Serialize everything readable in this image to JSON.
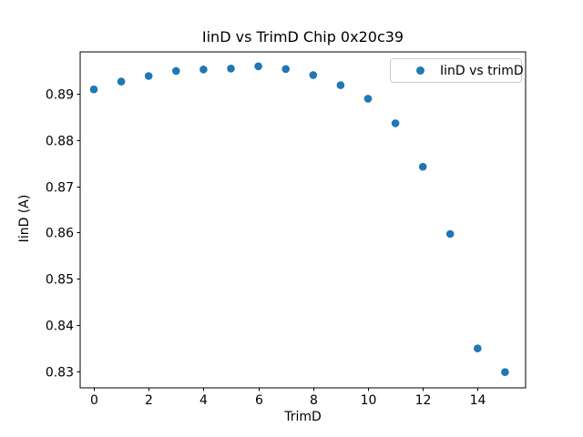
{
  "chart_data": {
    "type": "scatter",
    "title": "IinD vs TrimD Chip 0x20c39",
    "xlabel": "TrimD",
    "ylabel": "IinD (A)",
    "series": [
      {
        "name": "IinD vs trimD",
        "marker": "circle",
        "color": "#1f77b4",
        "x": [
          0,
          1,
          2,
          3,
          4,
          5,
          6,
          7,
          8,
          9,
          10,
          11,
          12,
          13,
          14,
          15
        ],
        "y": [
          0.8909,
          0.8926,
          0.8938,
          0.8949,
          0.8952,
          0.8954,
          0.8959,
          0.8953,
          0.894,
          0.8918,
          0.8889,
          0.8836,
          0.8742,
          0.8597,
          0.835,
          0.8299
        ]
      }
    ],
    "xlim": [
      -0.5,
      15.75
    ],
    "ylim": [
      0.8265,
      0.899
    ],
    "xticks": [
      0,
      2,
      4,
      6,
      8,
      10,
      12,
      14
    ],
    "yticks": [
      0.83,
      0.84,
      0.85,
      0.86,
      0.87,
      0.88,
      0.89
    ],
    "ytick_decimals": 2,
    "grid": false,
    "legend": {
      "position": "upper right",
      "entries": [
        {
          "label": "IinD vs trimD",
          "color": "#1f77b4"
        }
      ]
    }
  },
  "colors": {
    "marker": "#1f77b4",
    "axes_edge": "#000000",
    "legend_border": "#cccccc",
    "background": "#ffffff"
  }
}
